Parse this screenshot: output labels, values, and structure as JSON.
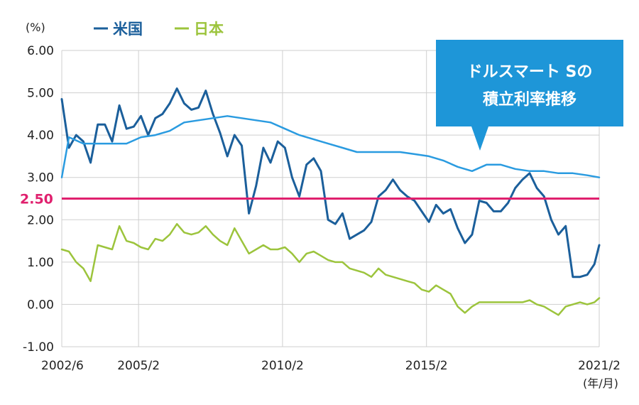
{
  "chart_data": {
    "type": "line",
    "unit_label": "(%)",
    "x_unit_label": "(年/月)",
    "xlim": [
      "2002-06",
      "2021-02"
    ],
    "ylim": [
      -1.0,
      6.0
    ],
    "y_ticks": [
      {
        "value": 6,
        "label": "6.00"
      },
      {
        "value": 5,
        "label": "5.00"
      },
      {
        "value": 4,
        "label": "4.00"
      },
      {
        "value": 3,
        "label": "3.00"
      },
      {
        "value": 2,
        "label": "2.00"
      },
      {
        "value": 1,
        "label": "1.00"
      },
      {
        "value": 0,
        "label": "0.00"
      },
      {
        "value": -1,
        "label": "-1.00"
      }
    ],
    "x_ticks": [
      {
        "value": "2002-06",
        "label": "2002/6"
      },
      {
        "value": "2005-02",
        "label": "2005/2"
      },
      {
        "value": "2010-02",
        "label": "2010/2"
      },
      {
        "value": "2015-02",
        "label": "2015/2"
      },
      {
        "value": "2021-02",
        "label": "2021/2"
      }
    ],
    "grid": true,
    "legend_position": "top-left",
    "reference_line": {
      "value": 2.5,
      "label": "2.50",
      "color": "#e0206e"
    },
    "callout": {
      "lines": [
        "ドルスマート Sの",
        "積立利率推移"
      ],
      "color": "#1e96d8"
    },
    "series": [
      {
        "name": "米国",
        "color": "#1b5f9b",
        "points": [
          [
            "2002-06",
            4.85
          ],
          [
            "2002-09",
            3.7
          ],
          [
            "2002-12",
            4.0
          ],
          [
            "2003-03",
            3.85
          ],
          [
            "2003-06",
            3.35
          ],
          [
            "2003-09",
            4.25
          ],
          [
            "2003-12",
            4.25
          ],
          [
            "2004-03",
            3.85
          ],
          [
            "2004-06",
            4.7
          ],
          [
            "2004-09",
            4.15
          ],
          [
            "2004-12",
            4.2
          ],
          [
            "2005-03",
            4.45
          ],
          [
            "2005-06",
            4.0
          ],
          [
            "2005-09",
            4.4
          ],
          [
            "2005-12",
            4.5
          ],
          [
            "2006-03",
            4.75
          ],
          [
            "2006-06",
            5.1
          ],
          [
            "2006-09",
            4.75
          ],
          [
            "2006-12",
            4.6
          ],
          [
            "2007-03",
            4.65
          ],
          [
            "2007-06",
            5.05
          ],
          [
            "2007-09",
            4.5
          ],
          [
            "2007-12",
            4.05
          ],
          [
            "2008-03",
            3.5
          ],
          [
            "2008-06",
            4.0
          ],
          [
            "2008-09",
            3.75
          ],
          [
            "2008-12",
            2.15
          ],
          [
            "2009-03",
            2.8
          ],
          [
            "2009-06",
            3.7
          ],
          [
            "2009-09",
            3.35
          ],
          [
            "2009-12",
            3.85
          ],
          [
            "2010-03",
            3.7
          ],
          [
            "2010-06",
            3.0
          ],
          [
            "2010-09",
            2.55
          ],
          [
            "2010-12",
            3.3
          ],
          [
            "2011-03",
            3.45
          ],
          [
            "2011-06",
            3.15
          ],
          [
            "2011-09",
            2.0
          ],
          [
            "2011-12",
            1.9
          ],
          [
            "2012-03",
            2.15
          ],
          [
            "2012-06",
            1.55
          ],
          [
            "2012-09",
            1.65
          ],
          [
            "2012-12",
            1.75
          ],
          [
            "2013-03",
            1.95
          ],
          [
            "2013-06",
            2.55
          ],
          [
            "2013-09",
            2.7
          ],
          [
            "2013-12",
            2.95
          ],
          [
            "2014-03",
            2.7
          ],
          [
            "2014-06",
            2.55
          ],
          [
            "2014-09",
            2.45
          ],
          [
            "2014-12",
            2.2
          ],
          [
            "2015-03",
            1.95
          ],
          [
            "2015-06",
            2.35
          ],
          [
            "2015-09",
            2.15
          ],
          [
            "2015-12",
            2.25
          ],
          [
            "2016-03",
            1.8
          ],
          [
            "2016-06",
            1.45
          ],
          [
            "2016-09",
            1.65
          ],
          [
            "2016-12",
            2.45
          ],
          [
            "2017-03",
            2.4
          ],
          [
            "2017-06",
            2.2
          ],
          [
            "2017-09",
            2.2
          ],
          [
            "2017-12",
            2.4
          ],
          [
            "2018-03",
            2.75
          ],
          [
            "2018-06",
            2.95
          ],
          [
            "2018-09",
            3.1
          ],
          [
            "2018-12",
            2.75
          ],
          [
            "2019-03",
            2.55
          ],
          [
            "2019-06",
            2.0
          ],
          [
            "2019-09",
            1.65
          ],
          [
            "2019-12",
            1.85
          ],
          [
            "2020-03",
            0.65
          ],
          [
            "2020-06",
            0.65
          ],
          [
            "2020-09",
            0.7
          ],
          [
            "2020-12",
            0.95
          ],
          [
            "2021-02",
            1.4
          ]
        ]
      },
      {
        "name": "米国 (ドルスマート S)",
        "color": "#2a9be0",
        "points": [
          [
            "2002-06",
            3.0
          ],
          [
            "2002-09",
            3.95
          ],
          [
            "2003-03",
            3.8
          ],
          [
            "2003-09",
            3.8
          ],
          [
            "2004-03",
            3.8
          ],
          [
            "2004-09",
            3.8
          ],
          [
            "2005-03",
            3.95
          ],
          [
            "2005-09",
            4.0
          ],
          [
            "2006-03",
            4.1
          ],
          [
            "2006-09",
            4.3
          ],
          [
            "2007-03",
            4.35
          ],
          [
            "2007-09",
            4.4
          ],
          [
            "2008-03",
            4.45
          ],
          [
            "2008-09",
            4.4
          ],
          [
            "2009-03",
            4.35
          ],
          [
            "2009-09",
            4.3
          ],
          [
            "2010-03",
            4.15
          ],
          [
            "2010-09",
            4.0
          ],
          [
            "2011-03",
            3.9
          ],
          [
            "2011-09",
            3.8
          ],
          [
            "2012-03",
            3.7
          ],
          [
            "2012-09",
            3.6
          ],
          [
            "2013-03",
            3.6
          ],
          [
            "2013-09",
            3.6
          ],
          [
            "2014-03",
            3.6
          ],
          [
            "2014-09",
            3.55
          ],
          [
            "2015-03",
            3.5
          ],
          [
            "2015-09",
            3.4
          ],
          [
            "2016-03",
            3.25
          ],
          [
            "2016-09",
            3.15
          ],
          [
            "2017-03",
            3.3
          ],
          [
            "2017-09",
            3.3
          ],
          [
            "2018-03",
            3.2
          ],
          [
            "2018-09",
            3.15
          ],
          [
            "2019-03",
            3.15
          ],
          [
            "2019-09",
            3.1
          ],
          [
            "2020-03",
            3.1
          ],
          [
            "2020-09",
            3.05
          ],
          [
            "2021-02",
            3.0
          ]
        ]
      },
      {
        "name": "日本",
        "color": "#9cc43c",
        "points": [
          [
            "2002-06",
            1.3
          ],
          [
            "2002-09",
            1.25
          ],
          [
            "2002-12",
            1.0
          ],
          [
            "2003-03",
            0.85
          ],
          [
            "2003-06",
            0.55
          ],
          [
            "2003-09",
            1.4
          ],
          [
            "2003-12",
            1.35
          ],
          [
            "2004-03",
            1.3
          ],
          [
            "2004-06",
            1.85
          ],
          [
            "2004-09",
            1.5
          ],
          [
            "2004-12",
            1.45
          ],
          [
            "2005-03",
            1.35
          ],
          [
            "2005-06",
            1.3
          ],
          [
            "2005-09",
            1.55
          ],
          [
            "2005-12",
            1.5
          ],
          [
            "2006-03",
            1.65
          ],
          [
            "2006-06",
            1.9
          ],
          [
            "2006-09",
            1.7
          ],
          [
            "2006-12",
            1.65
          ],
          [
            "2007-03",
            1.7
          ],
          [
            "2007-06",
            1.85
          ],
          [
            "2007-09",
            1.65
          ],
          [
            "2007-12",
            1.5
          ],
          [
            "2008-03",
            1.4
          ],
          [
            "2008-06",
            1.8
          ],
          [
            "2008-09",
            1.5
          ],
          [
            "2008-12",
            1.2
          ],
          [
            "2009-03",
            1.3
          ],
          [
            "2009-06",
            1.4
          ],
          [
            "2009-09",
            1.3
          ],
          [
            "2009-12",
            1.3
          ],
          [
            "2010-03",
            1.35
          ],
          [
            "2010-06",
            1.2
          ],
          [
            "2010-09",
            1.0
          ],
          [
            "2010-12",
            1.2
          ],
          [
            "2011-03",
            1.25
          ],
          [
            "2011-06",
            1.15
          ],
          [
            "2011-09",
            1.05
          ],
          [
            "2011-12",
            1.0
          ],
          [
            "2012-03",
            1.0
          ],
          [
            "2012-06",
            0.85
          ],
          [
            "2012-09",
            0.8
          ],
          [
            "2012-12",
            0.75
          ],
          [
            "2013-03",
            0.65
          ],
          [
            "2013-06",
            0.85
          ],
          [
            "2013-09",
            0.7
          ],
          [
            "2013-12",
            0.65
          ],
          [
            "2014-03",
            0.6
          ],
          [
            "2014-06",
            0.55
          ],
          [
            "2014-09",
            0.5
          ],
          [
            "2014-12",
            0.35
          ],
          [
            "2015-03",
            0.3
          ],
          [
            "2015-06",
            0.45
          ],
          [
            "2015-09",
            0.35
          ],
          [
            "2015-12",
            0.25
          ],
          [
            "2016-03",
            -0.05
          ],
          [
            "2016-06",
            -0.2
          ],
          [
            "2016-09",
            -0.05
          ],
          [
            "2016-12",
            0.05
          ],
          [
            "2017-03",
            0.05
          ],
          [
            "2017-06",
            0.05
          ],
          [
            "2017-09",
            0.05
          ],
          [
            "2017-12",
            0.05
          ],
          [
            "2018-03",
            0.05
          ],
          [
            "2018-06",
            0.05
          ],
          [
            "2018-09",
            0.1
          ],
          [
            "2018-12",
            0.0
          ],
          [
            "2019-03",
            -0.05
          ],
          [
            "2019-06",
            -0.15
          ],
          [
            "2019-09",
            -0.25
          ],
          [
            "2019-12",
            -0.05
          ],
          [
            "2020-03",
            0.0
          ],
          [
            "2020-06",
            0.05
          ],
          [
            "2020-09",
            0.0
          ],
          [
            "2020-12",
            0.05
          ],
          [
            "2021-02",
            0.15
          ]
        ]
      }
    ],
    "legend": [
      {
        "label": "米国",
        "color": "#1b5f9b"
      },
      {
        "label": "日本",
        "color": "#9cc43c"
      }
    ]
  }
}
